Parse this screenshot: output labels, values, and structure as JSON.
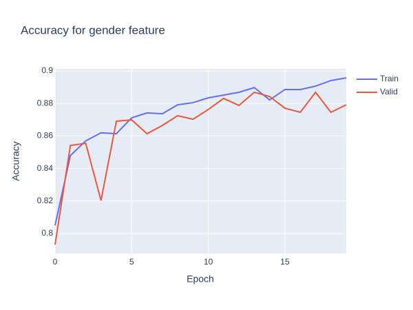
{
  "chart_data": {
    "type": "line",
    "title": "Accuracy for gender feature",
    "x_label": "Epoch",
    "y_label": "Accuracy",
    "x": [
      0,
      1,
      2,
      3,
      4,
      5,
      6,
      7,
      8,
      9,
      10,
      11,
      12,
      13,
      14,
      15,
      16,
      17,
      18,
      19
    ],
    "series": [
      {
        "name": "Train",
        "color": "#636efa",
        "values": [
          0.805,
          0.848,
          0.857,
          0.862,
          0.8614,
          0.8712,
          0.8742,
          0.8737,
          0.8792,
          0.8805,
          0.8835,
          0.8852,
          0.8869,
          0.8898,
          0.8822,
          0.8886,
          0.8886,
          0.8907,
          0.8941,
          0.8958
        ]
      },
      {
        "name": "Valid",
        "color": "#EF553B",
        "values": [
          0.7932,
          0.8542,
          0.8555,
          0.8203,
          0.8691,
          0.8699,
          0.8614,
          0.8665,
          0.8725,
          0.8703,
          0.8763,
          0.8831,
          0.8788,
          0.8869,
          0.8843,
          0.8771,
          0.8746,
          0.8869,
          0.8746,
          0.8792
        ]
      }
    ],
    "xlim": [
      0,
      19
    ],
    "xticks": [
      0,
      5,
      10,
      15
    ],
    "ylim": [
      0.7877,
      0.9013
    ],
    "yticks": [
      0.8,
      0.82,
      0.84,
      0.86,
      0.88,
      0.9
    ],
    "grid": true,
    "legend": "top-right"
  }
}
